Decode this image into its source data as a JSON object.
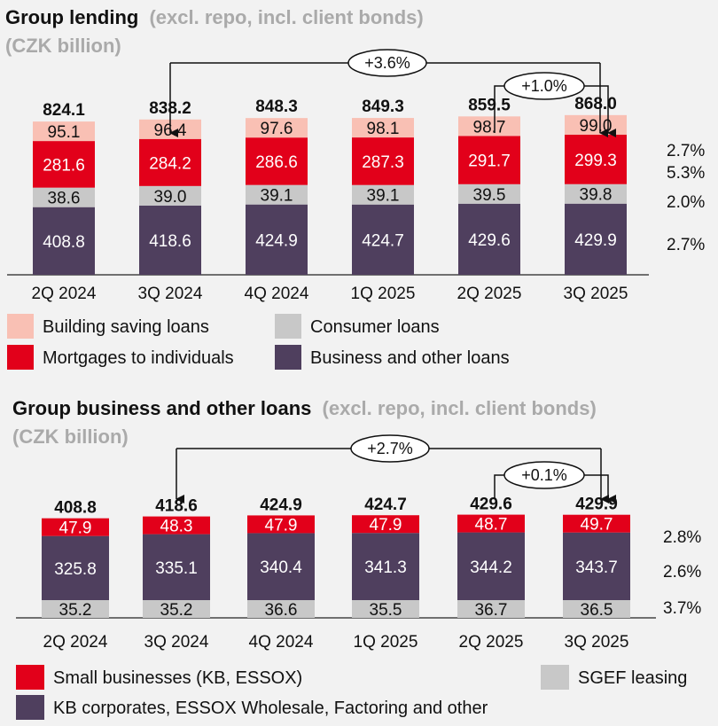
{
  "chart_data": [
    {
      "type": "stacked-bar",
      "title": "Group lending",
      "title_note": "(excl. repo, incl. client bonds)",
      "unit_note": "(CZK billion)",
      "categories": [
        "2Q 2024",
        "3Q 2024",
        "4Q 2024",
        "1Q 2025",
        "2Q 2025",
        "3Q 2025"
      ],
      "totals": [
        "824.1",
        "838.2",
        "848.3",
        "849.3",
        "859.5",
        "868.0"
      ],
      "series": [
        {
          "name": "Business and other loans",
          "color": "#4f3f5e",
          "text_color": "#ffffff",
          "values": [
            408.8,
            418.6,
            424.9,
            424.7,
            429.6,
            429.9
          ],
          "labels": [
            "408.8",
            "418.6",
            "424.9",
            "424.7",
            "429.6",
            "429.9"
          ]
        },
        {
          "name": "Consumer loans",
          "color": "#c8c8c8",
          "text_color": "#111111",
          "values": [
            38.6,
            39.0,
            39.1,
            39.1,
            39.5,
            39.8
          ],
          "labels": [
            "38.6",
            "39.0",
            "39.1",
            "39.1",
            "39.5",
            "39.8"
          ]
        },
        {
          "name": "Mortgages to individuals",
          "color": "#e2001a",
          "text_color": "#ffffff",
          "values": [
            281.6,
            284.2,
            286.6,
            287.3,
            291.7,
            299.3
          ],
          "labels": [
            "281.6",
            "284.2",
            "286.6",
            "287.3",
            "291.7",
            "299.3"
          ]
        },
        {
          "name": "Building saving loans",
          "color": "#f9c0b4",
          "text_color": "#111111",
          "values": [
            95.1,
            96.4,
            97.6,
            98.1,
            98.7,
            99.0
          ],
          "labels": [
            "95.1",
            "96.4",
            "97.6",
            "98.1",
            "98.7",
            "99.0"
          ]
        }
      ],
      "growth_labels": [
        "2.7%",
        "2.0%",
        "5.3%",
        "2.7%"
      ],
      "annotations": [
        {
          "text": "+3.6%",
          "from": "3Q 2024",
          "to": "3Q 2025"
        },
        {
          "text": "+1.0%",
          "from": "2Q 2025",
          "to": "3Q 2025"
        }
      ],
      "legend": [
        {
          "name": "Building saving loans",
          "color": "#f9c0b4"
        },
        {
          "name": "Consumer loans",
          "color": "#c8c8c8"
        },
        {
          "name": "Mortgages to individuals",
          "color": "#e2001a"
        },
        {
          "name": "Business and other loans",
          "color": "#4f3f5e"
        }
      ]
    },
    {
      "type": "stacked-bar",
      "title": "Group business and other loans",
      "title_note": "(excl. repo, incl. client bonds)",
      "unit_note": "(CZK billion)",
      "categories": [
        "2Q 2024",
        "3Q 2024",
        "4Q 2024",
        "1Q 2025",
        "2Q 2025",
        "3Q 2025"
      ],
      "totals": [
        "408.8",
        "418.6",
        "424.9",
        "424.7",
        "429.6",
        "429.9"
      ],
      "series": [
        {
          "name": "SGEF leasing",
          "color": "#c8c8c8",
          "text_color": "#111111",
          "values": [
            35.2,
            35.2,
            36.6,
            35.5,
            36.7,
            36.5
          ],
          "labels": [
            "35.2",
            "35.2",
            "36.6",
            "35.5",
            "36.7",
            "36.5"
          ]
        },
        {
          "name": "KB corporates, ESSOX Wholesale, Factoring and other",
          "color": "#4f3f5e",
          "text_color": "#ffffff",
          "values": [
            325.8,
            335.1,
            340.4,
            341.3,
            344.2,
            343.7
          ],
          "labels": [
            "325.8",
            "335.1",
            "340.4",
            "341.3",
            "344.2",
            "343.7"
          ]
        },
        {
          "name": "Small businesses (KB, ESSOX)",
          "color": "#e2001a",
          "text_color": "#ffffff",
          "values": [
            47.9,
            48.3,
            47.9,
            47.9,
            48.7,
            49.7
          ],
          "labels": [
            "47.9",
            "48.3",
            "47.9",
            "47.9",
            "48.7",
            "49.7"
          ]
        }
      ],
      "growth_labels": [
        "3.7%",
        "2.6%",
        "2.8%"
      ],
      "annotations": [
        {
          "text": "+2.7%",
          "from": "3Q 2024",
          "to": "3Q 2025"
        },
        {
          "text": "+0.1%",
          "from": "2Q 2025",
          "to": "3Q 2025"
        }
      ],
      "legend": [
        {
          "name": "Small businesses (KB, ESSOX)",
          "color": "#e2001a"
        },
        {
          "name": "SGEF leasing",
          "color": "#c8c8c8"
        },
        {
          "name": "KB corporates, ESSOX Wholesale, Factoring and other",
          "color": "#4f3f5e"
        }
      ]
    }
  ]
}
